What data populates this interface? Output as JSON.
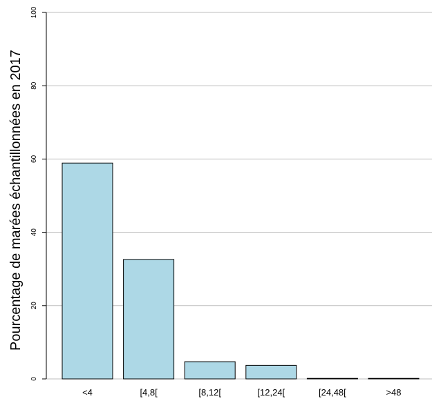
{
  "chart_data": {
    "type": "bar",
    "categories": [
      "<4",
      "[4,8[",
      "[8,12[",
      "[12,24[",
      "[24,48[",
      ">48"
    ],
    "values": [
      58.9,
      32.6,
      4.7,
      3.7,
      0.1,
      0.1
    ],
    "ylabel": "Pourcentage de marées échantillonnées en 2017",
    "xlabel": "",
    "ylim": [
      0,
      100
    ],
    "yticks": [
      "0",
      "20",
      "40",
      "60",
      "80",
      "100"
    ],
    "grid": "horizontal",
    "bar_color": "#add8e6",
    "bar_edge_color": "#000000",
    "grid_color": "#bebebe"
  }
}
